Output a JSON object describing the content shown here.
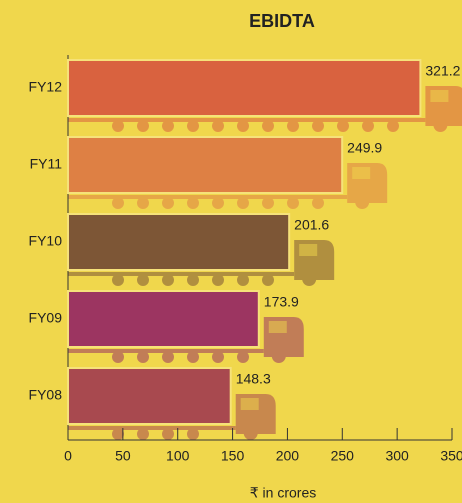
{
  "chart_data": {
    "type": "hbar",
    "title": "EBIDTA",
    "x_label": "₹ in crores",
    "categories": [
      "FY12",
      "FY11",
      "FY10",
      "FY09",
      "FY08"
    ],
    "values": [
      321.2,
      249.9,
      201.6,
      173.9,
      148.3
    ],
    "colors": [
      "#d9623f",
      "#de8044",
      "#7d5636",
      "#9c3561",
      "#a8494f"
    ],
    "xlim": [
      0,
      350
    ],
    "xticks": [
      0,
      50,
      100,
      150,
      200,
      250,
      300,
      350
    ]
  }
}
